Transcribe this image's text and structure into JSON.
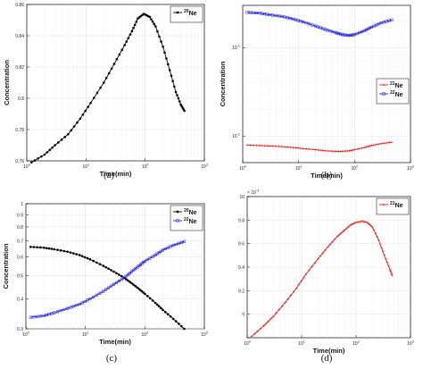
{
  "chart_data": [
    {
      "type": "line",
      "caption": "(a)",
      "xlabel": "Time(min)",
      "ylabel": "Concentration",
      "xscale": "log",
      "yscale": "linear",
      "xlim": [
        1,
        1000
      ],
      "ylim": [
        0.76,
        0.86
      ],
      "xticks": [
        1,
        10,
        100,
        1000
      ],
      "xtick_labels": [
        [
          "10",
          "0"
        ],
        [
          "10",
          "1"
        ],
        [
          "10",
          "2"
        ],
        [
          "10",
          "3"
        ]
      ],
      "yticks": [
        0.76,
        0.78,
        0.8,
        0.82,
        0.84,
        0.86
      ],
      "ytick_labels": [
        "0.76",
        "0.78",
        "0.8",
        "0.82",
        "0.84",
        "0.86"
      ],
      "grid": true,
      "legend_position": "top-right",
      "series": [
        {
          "name": "Ne",
          "sup": "20",
          "color": "#000000",
          "marker": "dot",
          "x": [
            1.2,
            2,
            3,
            5,
            8,
            12,
            20,
            30,
            45,
            60,
            75,
            95,
            120,
            150,
            200,
            260,
            330,
            400,
            460
          ],
          "y": [
            0.759,
            0.764,
            0.77,
            0.777,
            0.787,
            0.797,
            0.81,
            0.822,
            0.834,
            0.843,
            0.851,
            0.854,
            0.852,
            0.846,
            0.833,
            0.818,
            0.804,
            0.796,
            0.792
          ]
        }
      ]
    },
    {
      "type": "line",
      "caption": "(b)",
      "xlabel": "Time(min)",
      "ylabel": "Concentration",
      "xscale": "log",
      "yscale": "log",
      "xlim": [
        1,
        1000
      ],
      "ylim": [
        0.005,
        0.3
      ],
      "xticks": [
        1,
        10,
        100,
        1000
      ],
      "xtick_labels": [
        [
          "10",
          "0"
        ],
        [
          "10",
          "1"
        ],
        [
          "10",
          "2"
        ],
        [
          "10",
          "3"
        ]
      ],
      "yticks": [
        0.01,
        0.1
      ],
      "ytick_labels": [
        [
          "10",
          "-2"
        ],
        [
          "10",
          "-1"
        ]
      ],
      "grid": true,
      "legend_position": "center-right",
      "series": [
        {
          "name": "Ne",
          "sup": "21",
          "color": "#e02020",
          "marker": "plus",
          "x": [
            1.2,
            2,
            3,
            5,
            8,
            12,
            20,
            30,
            45,
            60,
            80,
            100,
            150,
            200,
            300,
            460
          ],
          "y": [
            0.0079,
            0.0078,
            0.0077,
            0.0076,
            0.0074,
            0.0072,
            0.007,
            0.0068,
            0.0067,
            0.0067,
            0.0068,
            0.007,
            0.0074,
            0.0078,
            0.0082,
            0.0085
          ]
        },
        {
          "name": "Ne",
          "sup": "22",
          "color": "#2020d0",
          "marker": "square",
          "x": [
            1.2,
            2,
            3,
            5,
            8,
            12,
            20,
            30,
            45,
            60,
            80,
            100,
            150,
            200,
            300,
            460
          ],
          "y": [
            0.25,
            0.245,
            0.235,
            0.225,
            0.21,
            0.195,
            0.175,
            0.16,
            0.148,
            0.14,
            0.137,
            0.14,
            0.155,
            0.17,
            0.19,
            0.205
          ]
        }
      ]
    },
    {
      "type": "line",
      "caption": "(c)",
      "xlabel": "Time(min)",
      "ylabel": "Concentration",
      "xscale": "log",
      "yscale": "log",
      "xlim": [
        1,
        1000
      ],
      "ylim": [
        0.3,
        1.0
      ],
      "xticks": [
        1,
        10,
        100,
        1000
      ],
      "xtick_labels": [
        [
          "10",
          "0"
        ],
        [
          "10",
          "1"
        ],
        [
          "10",
          "2"
        ],
        [
          "10",
          "3"
        ]
      ],
      "yticks": [
        0.3,
        0.4,
        0.5,
        0.6,
        0.7,
        0.8,
        0.9,
        1.0
      ],
      "ytick_labels": [
        "0.3",
        "0.4",
        "0.5",
        "0.6",
        "0.7",
        "0.8",
        "0.9",
        "1"
      ],
      "grid": true,
      "legend_position": "top-right",
      "series": [
        {
          "name": "Ne",
          "sup": "20",
          "color": "#000000",
          "marker": "dot",
          "x": [
            1.2,
            2,
            3,
            5,
            8,
            12,
            20,
            30,
            45,
            60,
            80,
            100,
            150,
            200,
            300,
            460
          ],
          "y": [
            0.66,
            0.655,
            0.645,
            0.63,
            0.61,
            0.585,
            0.55,
            0.52,
            0.49,
            0.465,
            0.44,
            0.42,
            0.385,
            0.36,
            0.33,
            0.3
          ]
        },
        {
          "name": "Ne",
          "sup": "22",
          "color": "#2020d0",
          "marker": "square",
          "x": [
            1.2,
            2,
            3,
            5,
            8,
            12,
            20,
            30,
            45,
            60,
            80,
            100,
            150,
            200,
            300,
            460
          ],
          "y": [
            0.335,
            0.34,
            0.35,
            0.365,
            0.38,
            0.4,
            0.43,
            0.46,
            0.49,
            0.52,
            0.55,
            0.575,
            0.61,
            0.64,
            0.67,
            0.695
          ]
        }
      ]
    },
    {
      "type": "line",
      "caption": "(d)",
      "xlabel": "Time(min)",
      "ylabel": "",
      "xscale": "log",
      "yscale": "linear",
      "y_multiplier_base": "10",
      "y_multiplier_exp": "-3",
      "xlim": [
        1,
        1000
      ],
      "ylim": [
        8.8,
        10.0
      ],
      "xticks": [
        1,
        10,
        100,
        1000
      ],
      "xtick_labels": [
        [
          "10",
          "0"
        ],
        [
          "10",
          "1"
        ],
        [
          "10",
          "2"
        ],
        [
          "10",
          "3"
        ]
      ],
      "yticks": [
        8.8,
        9.0,
        9.2,
        9.4,
        9.6,
        9.8,
        10.0
      ],
      "ytick_labels": [
        "",
        "9",
        "9.2",
        "9.4",
        "9.6",
        "9.8",
        "10"
      ],
      "grid": true,
      "legend_position": "top-right",
      "series": [
        {
          "name": "Ne",
          "sup": "21",
          "color": "#e02020",
          "marker": "plus",
          "x": [
            1.2,
            2,
            3,
            5,
            8,
            12,
            20,
            30,
            45,
            60,
            80,
            100,
            130,
            160,
            200,
            260,
            330,
            420,
            460
          ],
          "y": [
            8.81,
            8.9,
            8.98,
            9.1,
            9.22,
            9.34,
            9.47,
            9.57,
            9.66,
            9.71,
            9.76,
            9.78,
            9.79,
            9.78,
            9.74,
            9.63,
            9.5,
            9.38,
            9.33
          ]
        }
      ]
    }
  ]
}
